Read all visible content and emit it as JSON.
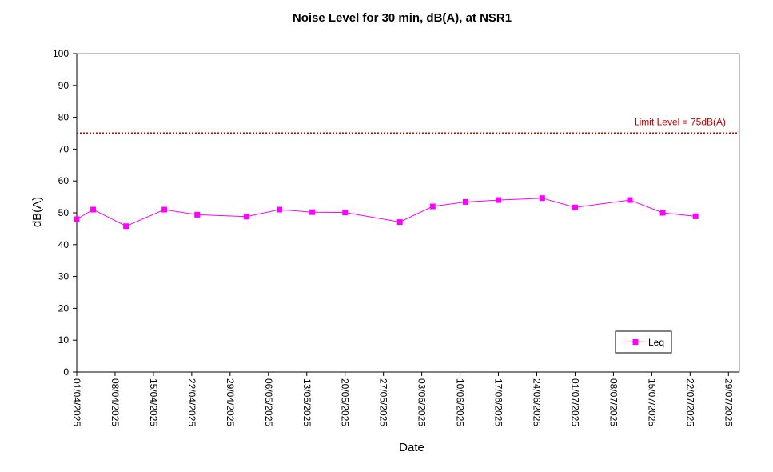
{
  "chart_data": {
    "type": "line",
    "title": "Noise Level for 30 min, dB(A), at NSR1",
    "xlabel": "Date",
    "ylabel": "dB(A)",
    "ylim": [
      0,
      100
    ],
    "yticks": [
      0,
      10,
      20,
      30,
      40,
      50,
      60,
      70,
      80,
      90,
      100
    ],
    "xlim": [
      "2025-04-01",
      "2025-07-31"
    ],
    "xticks": [
      "01/04/2025",
      "08/04/2025",
      "15/04/2025",
      "22/04/2025",
      "29/04/2025",
      "06/05/2025",
      "13/05/2025",
      "20/05/2025",
      "27/05/2025",
      "03/06/2025",
      "10/06/2025",
      "17/06/2025",
      "24/06/2025",
      "01/07/2025",
      "08/07/2025",
      "15/07/2025",
      "22/07/2025",
      "29/07/2025"
    ],
    "grid": false,
    "legend_position": "bottom-right",
    "series": [
      {
        "name": "Leq",
        "color": "#ff00ff",
        "marker": "square",
        "x": [
          "2025-04-01",
          "2025-04-04",
          "2025-04-10",
          "2025-04-17",
          "2025-04-23",
          "2025-05-02",
          "2025-05-08",
          "2025-05-14",
          "2025-05-20",
          "2025-05-30",
          "2025-06-05",
          "2025-06-11",
          "2025-06-17",
          "2025-06-25",
          "2025-07-01",
          "2025-07-11",
          "2025-07-17",
          "2025-07-23"
        ],
        "y": [
          48.0,
          51.0,
          45.8,
          51.0,
          49.4,
          48.8,
          51.0,
          50.2,
          50.1,
          47.1,
          52.0,
          53.4,
          54.0,
          54.6,
          51.7,
          54.0,
          50.0,
          48.9
        ]
      }
    ],
    "limit": {
      "label": "Limit Level  = 75dB(A)",
      "value": 75,
      "color": "#c00000"
    }
  }
}
